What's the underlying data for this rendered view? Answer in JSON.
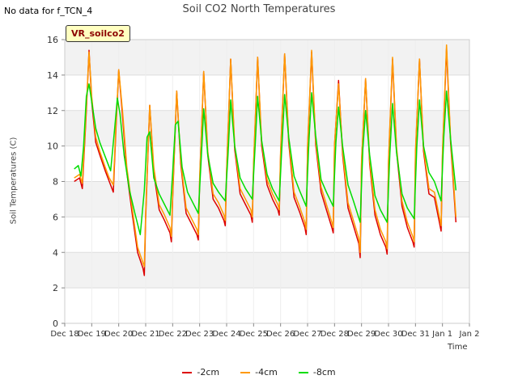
{
  "page": {
    "nodata_label": "No data for f_TCN_4",
    "tag_label": "VR_soilco2"
  },
  "chart_data": {
    "type": "line",
    "title": "Soil CO2 North Temperatures",
    "xlabel": "Time",
    "ylabel": "Soil Temperatures (C)",
    "ylim": [
      0,
      16
    ],
    "yticks": [
      0,
      2,
      4,
      6,
      8,
      10,
      12,
      14,
      16
    ],
    "xlim": [
      0,
      15
    ],
    "xticks": [
      {
        "pos": 0,
        "label": "Dec 18"
      },
      {
        "pos": 1,
        "label": "Dec 19"
      },
      {
        "pos": 2,
        "label": "Dec 20"
      },
      {
        "pos": 3,
        "label": "Dec 21"
      },
      {
        "pos": 4,
        "label": "Dec 22"
      },
      {
        "pos": 5,
        "label": "Dec 23"
      },
      {
        "pos": 6,
        "label": "Dec 24"
      },
      {
        "pos": 7,
        "label": "Dec 25"
      },
      {
        "pos": 8,
        "label": "Dec 26"
      },
      {
        "pos": 9,
        "label": "Dec 27"
      },
      {
        "pos": 10,
        "label": "Dec 28"
      },
      {
        "pos": 11,
        "label": "Dec 29"
      },
      {
        "pos": 12,
        "label": "Dec 30"
      },
      {
        "pos": 13,
        "label": "Dec 31"
      },
      {
        "pos": 14,
        "label": "Jan 1"
      },
      {
        "pos": 15,
        "label": "Jan 2"
      }
    ],
    "grid": true,
    "legend_position": "bottom",
    "series": [
      {
        "name": "-2cm",
        "color": "#dd0000",
        "x": [
          0.35,
          0.55,
          0.65,
          0.8,
          0.9,
          1.0,
          1.15,
          1.3,
          1.5,
          1.65,
          1.8,
          1.9,
          2.0,
          2.15,
          2.3,
          2.5,
          2.7,
          2.9,
          2.95,
          3.0,
          3.15,
          3.3,
          3.5,
          3.7,
          3.9,
          3.95,
          4.0,
          4.15,
          4.3,
          4.5,
          4.7,
          4.9,
          4.95,
          5.0,
          5.15,
          5.3,
          5.5,
          5.7,
          5.9,
          5.95,
          6.0,
          6.15,
          6.3,
          6.5,
          6.7,
          6.9,
          6.95,
          7.0,
          7.15,
          7.3,
          7.5,
          7.7,
          7.9,
          7.95,
          8.0,
          8.15,
          8.3,
          8.5,
          8.7,
          8.9,
          8.95,
          9.0,
          9.15,
          9.3,
          9.5,
          9.7,
          9.9,
          9.95,
          10.0,
          10.15,
          10.3,
          10.5,
          10.7,
          10.9,
          10.95,
          11.0,
          11.15,
          11.3,
          11.5,
          11.7,
          11.9,
          11.95,
          12.0,
          12.15,
          12.3,
          12.5,
          12.7,
          12.9,
          12.95,
          13.0,
          13.15,
          13.3,
          13.5,
          13.7,
          13.9,
          13.95,
          14.0,
          14.15,
          14.3,
          14.5
        ],
        "y": [
          8.0,
          8.2,
          7.6,
          12.0,
          15.4,
          12.5,
          10.2,
          9.5,
          8.6,
          8.0,
          7.4,
          11.0,
          14.3,
          11.5,
          8.5,
          6.2,
          4.0,
          3.1,
          2.7,
          6.0,
          12.3,
          8.5,
          6.4,
          5.8,
          5.1,
          4.6,
          7.0,
          13.1,
          9.0,
          6.2,
          5.6,
          5.0,
          4.7,
          8.0,
          14.2,
          9.5,
          7.0,
          6.5,
          5.8,
          5.5,
          8.5,
          14.9,
          9.8,
          7.3,
          6.7,
          6.1,
          5.7,
          8.8,
          15.0,
          10.0,
          7.8,
          7.0,
          6.4,
          6.1,
          9.5,
          15.2,
          10.2,
          7.1,
          6.3,
          5.4,
          5.0,
          9.8,
          15.3,
          10.1,
          7.4,
          6.4,
          5.4,
          5.1,
          10.0,
          13.7,
          9.5,
          6.5,
          5.5,
          4.5,
          3.7,
          9.0,
          13.8,
          9.0,
          6.1,
          5.0,
          4.3,
          3.9,
          9.0,
          14.9,
          9.7,
          6.6,
          5.4,
          4.6,
          4.3,
          9.5,
          14.9,
          9.7,
          7.3,
          7.1,
          5.6,
          5.2,
          9.5,
          15.5,
          10.2,
          5.7
        ]
      },
      {
        "name": "-4cm",
        "color": "#ff9900",
        "x": [
          0.35,
          0.55,
          0.65,
          0.8,
          0.9,
          1.0,
          1.15,
          1.3,
          1.5,
          1.65,
          1.8,
          1.9,
          2.0,
          2.15,
          2.3,
          2.5,
          2.7,
          2.9,
          2.95,
          3.0,
          3.15,
          3.3,
          3.5,
          3.7,
          3.9,
          3.95,
          4.0,
          4.15,
          4.3,
          4.5,
          4.7,
          4.9,
          4.95,
          5.0,
          5.15,
          5.3,
          5.5,
          5.7,
          5.9,
          5.95,
          6.0,
          6.15,
          6.3,
          6.5,
          6.7,
          6.9,
          6.95,
          7.0,
          7.15,
          7.3,
          7.5,
          7.7,
          7.9,
          7.95,
          8.0,
          8.15,
          8.3,
          8.5,
          8.7,
          8.9,
          8.95,
          9.0,
          9.15,
          9.3,
          9.5,
          9.7,
          9.9,
          9.95,
          10.0,
          10.15,
          10.3,
          10.5,
          10.7,
          10.9,
          10.95,
          11.0,
          11.15,
          11.3,
          11.5,
          11.7,
          11.9,
          11.95,
          12.0,
          12.15,
          12.3,
          12.5,
          12.7,
          12.9,
          12.95,
          13.0,
          13.15,
          13.3,
          13.5,
          13.7,
          13.9,
          13.95,
          14.0,
          14.15,
          14.3,
          14.5
        ],
        "y": [
          8.2,
          8.4,
          7.9,
          12.2,
          15.3,
          12.8,
          10.5,
          9.7,
          8.8,
          8.2,
          7.8,
          11.2,
          14.3,
          11.8,
          8.8,
          6.5,
          4.3,
          3.4,
          3.2,
          6.3,
          12.3,
          8.8,
          6.7,
          6.1,
          5.4,
          4.9,
          7.2,
          13.1,
          9.2,
          6.5,
          5.9,
          5.3,
          5.0,
          8.2,
          14.2,
          9.7,
          7.3,
          6.8,
          6.1,
          5.8,
          8.7,
          14.9,
          10.0,
          7.6,
          7.0,
          6.4,
          6.0,
          9.0,
          15.0,
          10.2,
          8.1,
          7.3,
          6.7,
          6.4,
          9.7,
          15.2,
          10.4,
          7.4,
          6.6,
          5.7,
          5.3,
          10.0,
          15.4,
          10.3,
          7.7,
          6.7,
          5.7,
          5.4,
          10.1,
          13.5,
          9.7,
          6.8,
          5.8,
          4.8,
          4.0,
          9.2,
          13.8,
          9.2,
          6.4,
          5.3,
          4.6,
          4.2,
          9.2,
          15.0,
          9.9,
          6.9,
          5.7,
          4.9,
          4.6,
          9.7,
          14.9,
          9.9,
          7.6,
          7.4,
          5.9,
          5.5,
          9.7,
          15.7,
          10.4,
          6.0
        ]
      },
      {
        "name": "-8cm",
        "color": "#00dd00",
        "x": [
          0.35,
          0.5,
          0.6,
          0.7,
          0.8,
          0.9,
          1.0,
          1.15,
          1.3,
          1.5,
          1.7,
          1.85,
          1.95,
          2.05,
          2.2,
          2.4,
          2.6,
          2.8,
          2.95,
          3.05,
          3.15,
          3.3,
          3.5,
          3.7,
          3.9,
          4.0,
          4.1,
          4.2,
          4.35,
          4.55,
          4.75,
          4.95,
          5.05,
          5.15,
          5.3,
          5.5,
          5.7,
          5.95,
          6.05,
          6.15,
          6.3,
          6.5,
          6.7,
          6.95,
          7.05,
          7.15,
          7.3,
          7.5,
          7.7,
          7.95,
          8.05,
          8.15,
          8.3,
          8.5,
          8.7,
          8.95,
          9.05,
          9.15,
          9.3,
          9.5,
          9.7,
          9.95,
          10.05,
          10.15,
          10.3,
          10.5,
          10.7,
          10.95,
          11.05,
          11.15,
          11.3,
          11.5,
          11.7,
          11.95,
          12.05,
          12.15,
          12.3,
          12.5,
          12.7,
          12.95,
          13.05,
          13.15,
          13.3,
          13.5,
          13.7,
          13.95,
          14.05,
          14.15,
          14.3,
          14.5
        ],
        "y": [
          8.7,
          8.9,
          8.3,
          10.0,
          12.8,
          13.5,
          12.5,
          11.0,
          10.2,
          9.4,
          8.6,
          11.0,
          12.7,
          11.8,
          9.5,
          7.5,
          6.2,
          5.0,
          7.5,
          10.5,
          10.8,
          8.2,
          7.3,
          6.7,
          6.1,
          8.5,
          11.2,
          11.4,
          8.8,
          7.4,
          6.8,
          6.2,
          9.0,
          12.1,
          9.5,
          7.9,
          7.4,
          6.9,
          9.5,
          12.6,
          10.0,
          8.2,
          7.6,
          7.0,
          9.8,
          12.8,
          10.3,
          8.4,
          7.6,
          6.9,
          10.0,
          12.9,
          10.5,
          8.3,
          7.5,
          6.6,
          10.3,
          13.0,
          10.6,
          8.1,
          7.4,
          6.6,
          10.2,
          12.2,
          10.0,
          7.8,
          6.9,
          5.7,
          9.8,
          12.0,
          9.5,
          7.2,
          6.4,
          5.7,
          9.6,
          12.4,
          9.6,
          7.3,
          6.5,
          5.9,
          10.0,
          12.6,
          10.0,
          8.5,
          8.0,
          6.9,
          10.5,
          13.1,
          10.4,
          7.5
        ]
      }
    ]
  }
}
